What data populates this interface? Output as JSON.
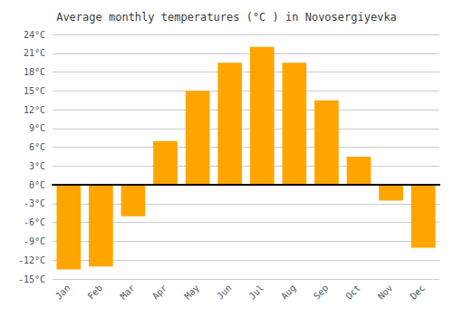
{
  "chart_data": {
    "type": "bar",
    "title": "Average monthly temperatures (°C ) in Novosergiyevka",
    "categories": [
      "Jan",
      "Feb",
      "Mar",
      "Apr",
      "May",
      "Jun",
      "Jul",
      "Aug",
      "Sep",
      "Oct",
      "Nov",
      "Dec"
    ],
    "values": [
      -13.5,
      -13.0,
      -5.0,
      7.0,
      15.0,
      19.5,
      22.0,
      19.5,
      13.5,
      4.5,
      -2.5,
      -10.0
    ],
    "color": "#FFA500",
    "ylim": [
      -15,
      24
    ],
    "yticks": [
      {
        "value": -15,
        "label": "-15°C"
      },
      {
        "value": -12,
        "label": "-12°C"
      },
      {
        "value": -9,
        "label": "-9°C"
      },
      {
        "value": -6,
        "label": "-6°C"
      },
      {
        "value": -3,
        "label": "-3°C"
      },
      {
        "value": 0,
        "label": "0°C"
      },
      {
        "value": 3,
        "label": "3°C"
      },
      {
        "value": 6,
        "label": "6°C"
      },
      {
        "value": 9,
        "label": "9°C"
      },
      {
        "value": 12,
        "label": "12°C"
      },
      {
        "value": 15,
        "label": "15°C"
      },
      {
        "value": 18,
        "label": "18°C"
      },
      {
        "value": 21,
        "label": "21°C"
      },
      {
        "value": 24,
        "label": "24°C"
      }
    ],
    "grid": true
  }
}
